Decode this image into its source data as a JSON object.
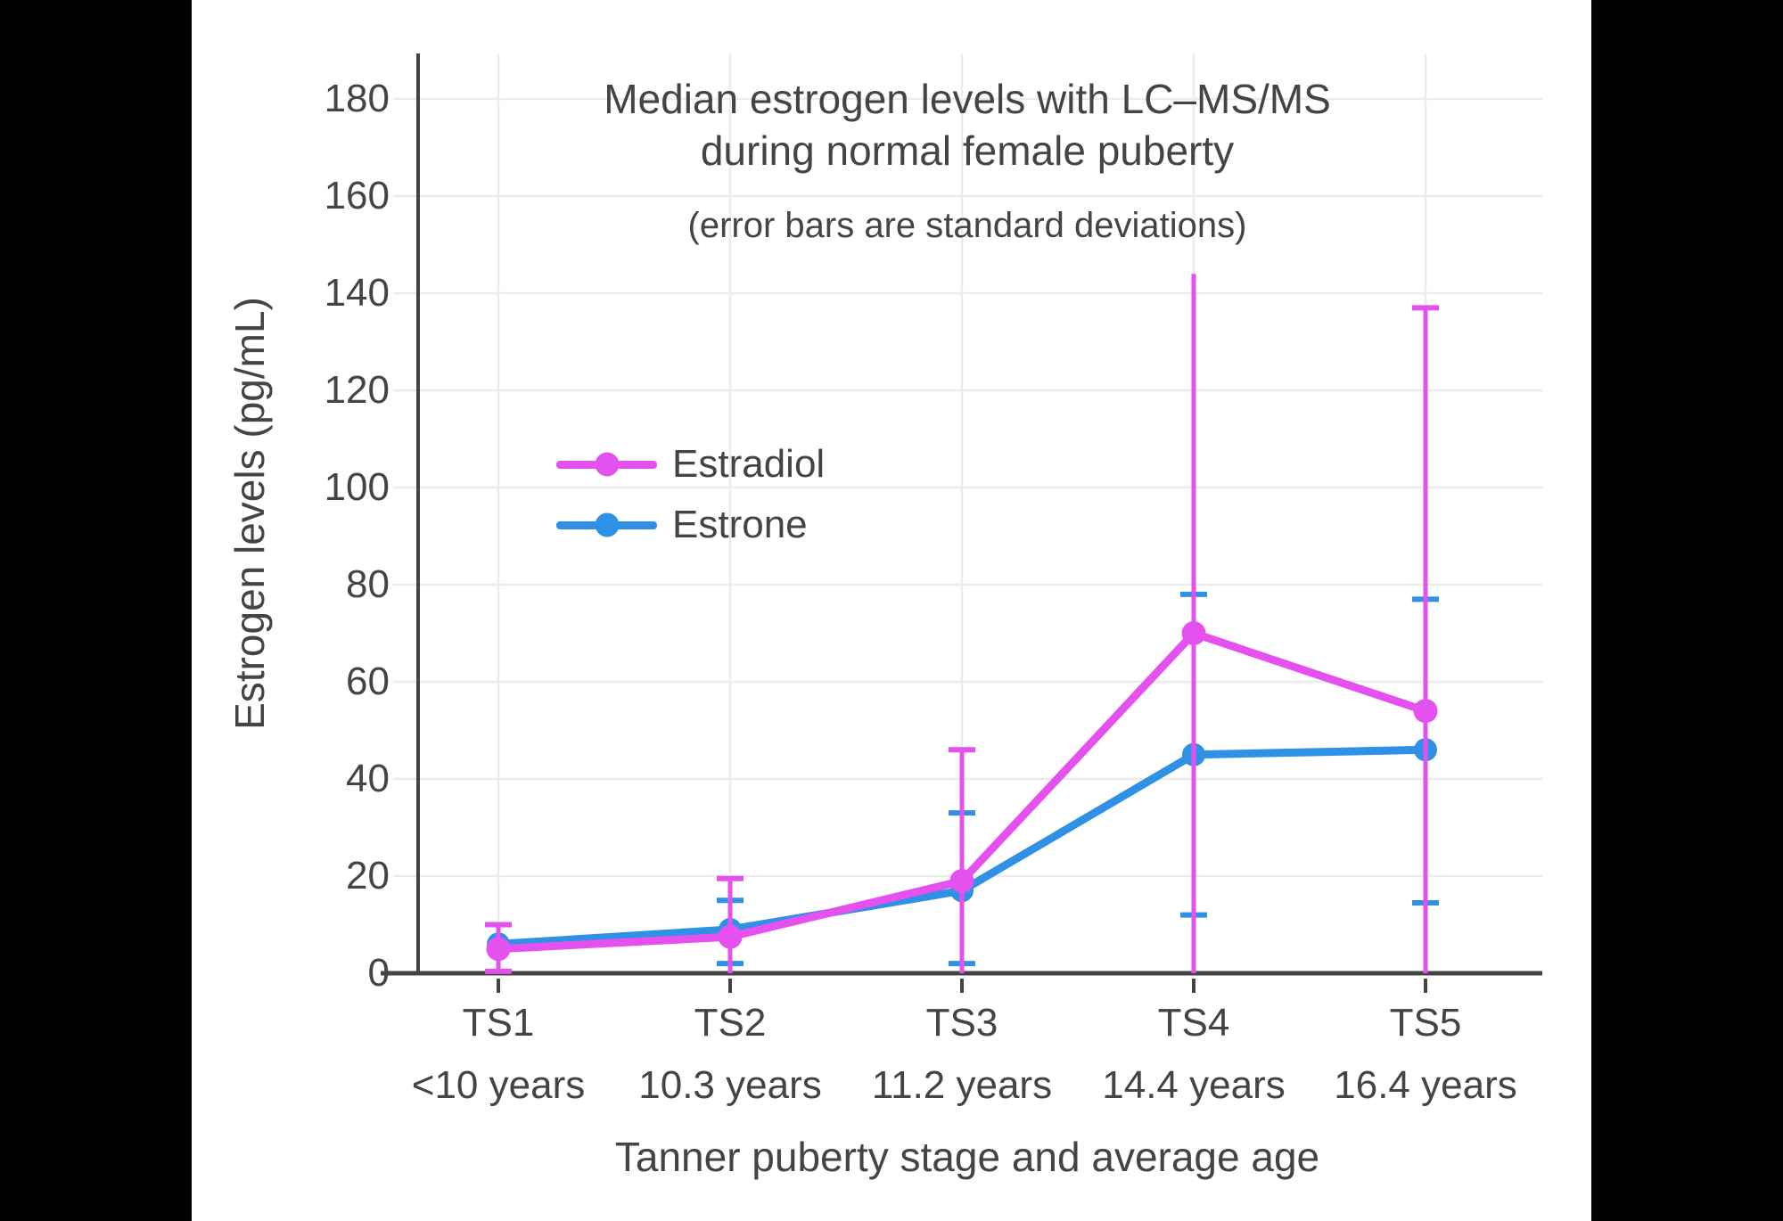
{
  "page": {
    "background": "#000000",
    "canvas": "#FFFFFF"
  },
  "chart_data": {
    "type": "line",
    "title_line1": "Median estrogen levels with LC–MS/MS",
    "title_line2": "during normal female puberty",
    "subtitle": "(error bars are standard deviations)",
    "xlabel": "Tanner puberty stage and average age",
    "ylabel": "Estrogen levels (pg/mL)",
    "categories": [
      "TS1",
      "TS2",
      "TS3",
      "TS4",
      "TS5"
    ],
    "category_ages": [
      "<10 years",
      "10.3 years",
      "11.2 years",
      "14.4 years",
      "16.4 years"
    ],
    "yticks": [
      0,
      20,
      40,
      60,
      80,
      100,
      120,
      140,
      160,
      180
    ],
    "ylim": [
      0,
      190
    ],
    "grid": true,
    "axis_color": "#444444",
    "grid_color": "#ECECEC",
    "text_color": "#444444",
    "legend_position": "inside-left",
    "series": [
      {
        "name": "Estradiol",
        "color": "#E551EE",
        "values": [
          5,
          7.5,
          19,
          70,
          54
        ],
        "err_upper": [
          10,
          19.5,
          46,
          144,
          137
        ],
        "err_lower": [
          0.4,
          null,
          null,
          null,
          null
        ],
        "upper_caps": [
          true,
          true,
          true,
          false,
          true
        ],
        "lower_clipped_at_zero": [
          false,
          true,
          true,
          true,
          true
        ]
      },
      {
        "name": "Estrone",
        "color": "#2E91E5",
        "values": [
          6,
          9,
          17,
          45,
          46
        ],
        "err_upper": [
          null,
          15,
          33,
          78,
          77
        ],
        "err_lower": [
          null,
          2,
          2,
          12,
          14.5
        ],
        "upper_caps": [
          true,
          true,
          true,
          true,
          true
        ],
        "lower_clipped_at_zero": [
          false,
          false,
          false,
          false,
          false
        ]
      }
    ]
  }
}
